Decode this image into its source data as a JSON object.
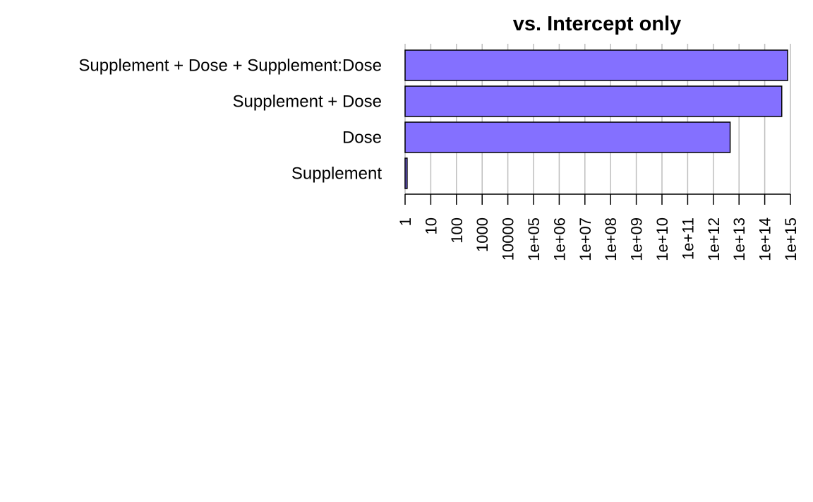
{
  "chart_data": {
    "type": "bar",
    "orientation": "horizontal",
    "title": "vs. Intercept only",
    "xlabel": "",
    "ylabel": "",
    "x_scale": "log10",
    "xlim": [
      1,
      1000000000000000.0
    ],
    "grid": true,
    "categories": [
      "Supplement + Dose + Supplement:Dose",
      "Supplement + Dose",
      "Dose",
      "Supplement"
    ],
    "values": [
      780000000000000.0,
      460000000000000.0,
      4500000000000.0,
      1.2
    ],
    "x_ticks": [
      {
        "value": 1,
        "label": "1"
      },
      {
        "value": 10,
        "label": "10"
      },
      {
        "value": 100,
        "label": "100"
      },
      {
        "value": 1000,
        "label": "1000"
      },
      {
        "value": 10000,
        "label": "10000"
      },
      {
        "value": 100000,
        "label": "1e+05"
      },
      {
        "value": 1000000,
        "label": "1e+06"
      },
      {
        "value": 10000000,
        "label": "1e+07"
      },
      {
        "value": 100000000,
        "label": "1e+08"
      },
      {
        "value": 1000000000,
        "label": "1e+09"
      },
      {
        "value": 10000000000,
        "label": "1e+10"
      },
      {
        "value": 100000000000,
        "label": "1e+11"
      },
      {
        "value": 1000000000000,
        "label": "1e+12"
      },
      {
        "value": 10000000000000,
        "label": "1e+13"
      },
      {
        "value": 100000000000000,
        "label": "1e+14"
      },
      {
        "value": 1000000000000000,
        "label": "1e+15"
      }
    ],
    "colors": {
      "bar_fill": "#8470FF",
      "bar_stroke": "#000000",
      "grid": "#BEBEBE",
      "axis": "#000000"
    }
  }
}
